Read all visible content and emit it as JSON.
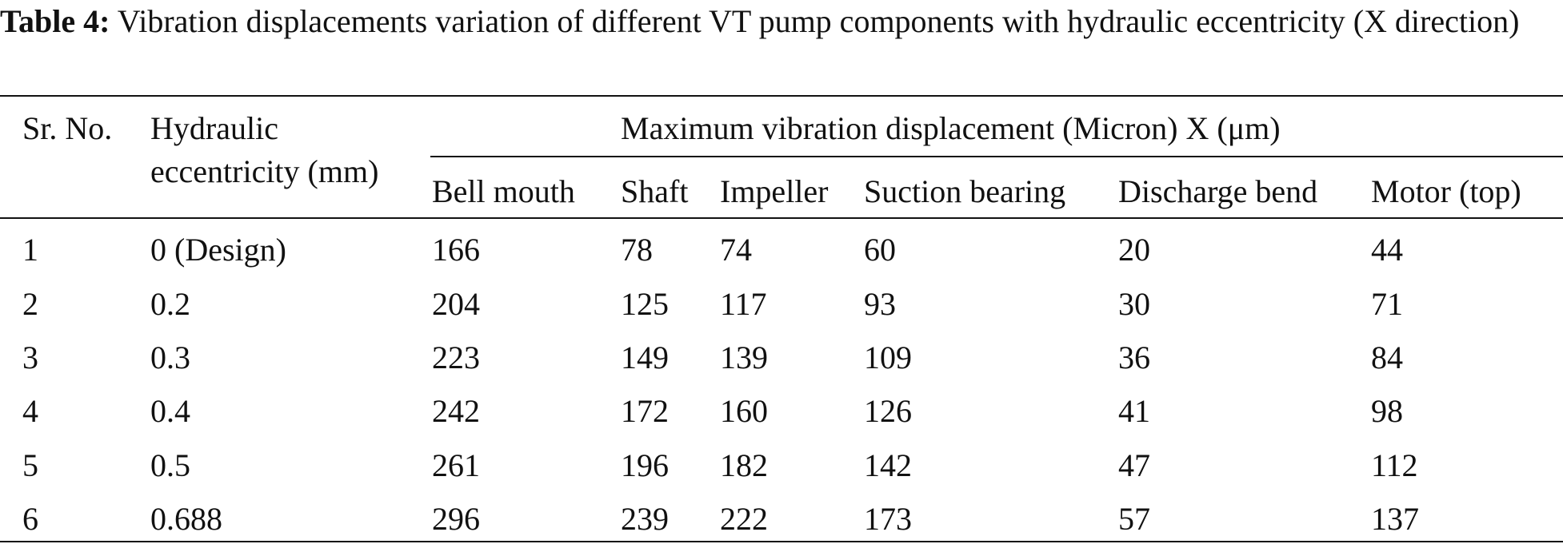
{
  "caption": {
    "label": "Table 4:",
    "text": "Vibration displacements variation of different VT pump components with hydraulic eccentricity (X direction)"
  },
  "table": {
    "header": {
      "sr_no": "Sr. No.",
      "eccentricity": [
        "Hydraulic",
        "eccentricity (mm)"
      ],
      "group": "Maximum vibration displacement (Micron) X (μm)",
      "columns": [
        "Bell mouth",
        "Shaft",
        "Impeller",
        "Suction bearing",
        "Discharge bend",
        "Motor (top)"
      ]
    },
    "rows": [
      [
        "1",
        "0 (Design)",
        "166",
        "78",
        "74",
        "60",
        "20",
        "44"
      ],
      [
        "2",
        "0.2",
        "204",
        "125",
        "117",
        "93",
        "30",
        "71"
      ],
      [
        "3",
        "0.3",
        "223",
        "149",
        "139",
        "109",
        "36",
        "84"
      ],
      [
        "4",
        "0.4",
        "242",
        "172",
        "160",
        "126",
        "41",
        "98"
      ],
      [
        "5",
        "0.5",
        "261",
        "196",
        "182",
        "142",
        "47",
        "112"
      ],
      [
        "6",
        "0.688",
        "296",
        "239",
        "222",
        "173",
        "57",
        "137"
      ]
    ]
  }
}
